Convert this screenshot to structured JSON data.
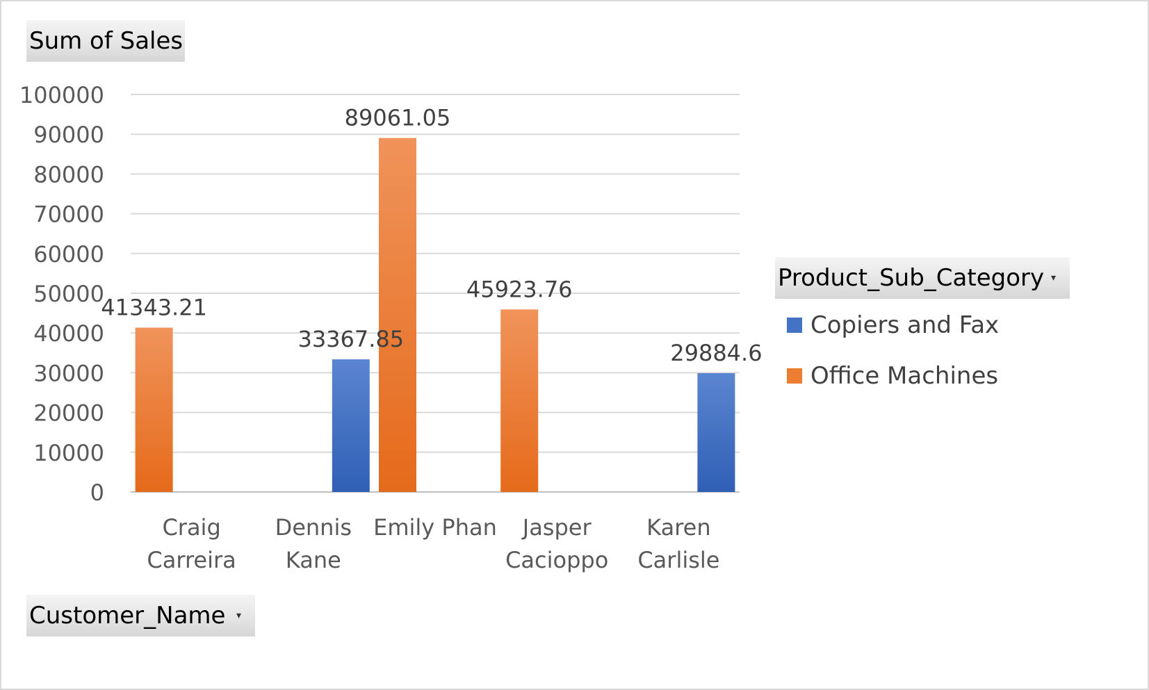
{
  "field_buttons": {
    "value_field": "Sum of Sales",
    "axis_field": "Customer_Name",
    "legend_field": "Product_Sub_Category"
  },
  "chart_data": {
    "type": "bar",
    "categories": [
      [
        "Craig",
        "Carreira"
      ],
      [
        "Dennis",
        "Kane"
      ],
      [
        "Emily Phan"
      ],
      [
        "Jasper",
        "Cacioppo"
      ],
      [
        "Karen",
        "Carlisle"
      ]
    ],
    "series": [
      {
        "name": "Copiers and Fax",
        "color": "#4472c4",
        "values": [
          null,
          33367.85,
          null,
          null,
          29884.6
        ]
      },
      {
        "name": "Office Machines",
        "color": "#ed7d31",
        "values": [
          41343.21,
          null,
          89061.05,
          45923.76,
          null
        ]
      }
    ],
    "data_labels": [
      {
        "category": 0,
        "series": 1,
        "text": "41343.21"
      },
      {
        "category": 1,
        "series": 0,
        "text": "33367.85"
      },
      {
        "category": 2,
        "series": 1,
        "text": "89061.05"
      },
      {
        "category": 3,
        "series": 1,
        "text": "45923.76"
      },
      {
        "category": 4,
        "series": 0,
        "text": "29884.6"
      }
    ],
    "yticks": [
      "0",
      "10000",
      "20000",
      "30000",
      "40000",
      "50000",
      "60000",
      "70000",
      "80000",
      "90000",
      "100000"
    ],
    "ylim": [
      0,
      100000
    ],
    "grid": true,
    "legend_position": "right"
  },
  "colors": {
    "copiers_and_fax": "#4472c4",
    "office_machines": "#ed7d31",
    "gridline": "#d9d9d9",
    "tick_text": "#595959",
    "data_label_text": "#404040"
  }
}
